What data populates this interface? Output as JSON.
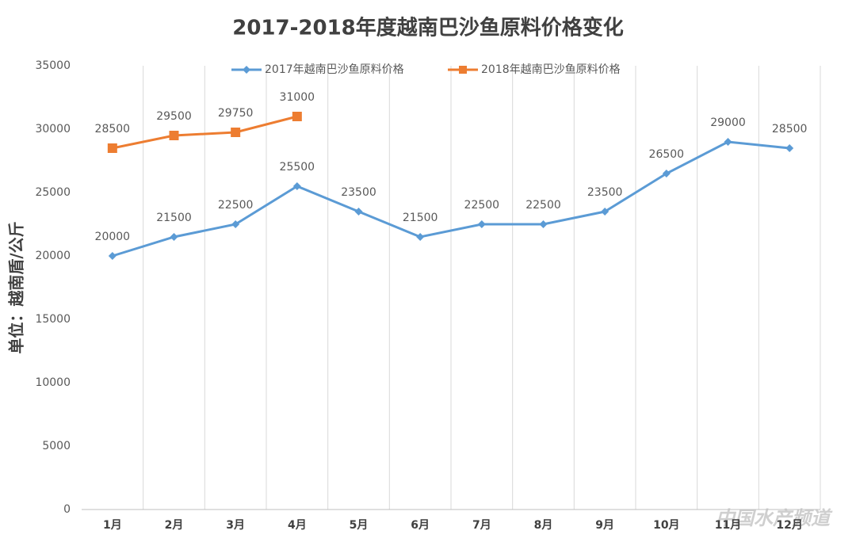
{
  "chart_data": {
    "type": "line",
    "title": "2017-2018年度越南巴沙鱼原料价格变化",
    "y_label": "单位：越南盾/公斤",
    "categories": [
      "1月",
      "2月",
      "3月",
      "4月",
      "5月",
      "6月",
      "7月",
      "8月",
      "9月",
      "10月",
      "11月",
      "12月"
    ],
    "series": [
      {
        "name": "2017年越南巴沙鱼原料价格",
        "color": "#5b9bd5",
        "marker": "diamond",
        "values": [
          20000,
          21500,
          22500,
          25500,
          23500,
          21500,
          22500,
          22500,
          23500,
          26500,
          29000,
          28500
        ]
      },
      {
        "name": "2018年越南巴沙鱼原料价格",
        "color": "#ed7d31",
        "marker": "square",
        "values": [
          28500,
          29500,
          29750,
          31000,
          null,
          null,
          null,
          null,
          null,
          null,
          null,
          null
        ]
      }
    ],
    "ylim": [
      0,
      35000
    ],
    "yticks": [
      0,
      5000,
      10000,
      15000,
      20000,
      25000,
      30000,
      35000
    ],
    "grid": "vertical",
    "legend": "top",
    "watermark": "中国水产频道"
  }
}
